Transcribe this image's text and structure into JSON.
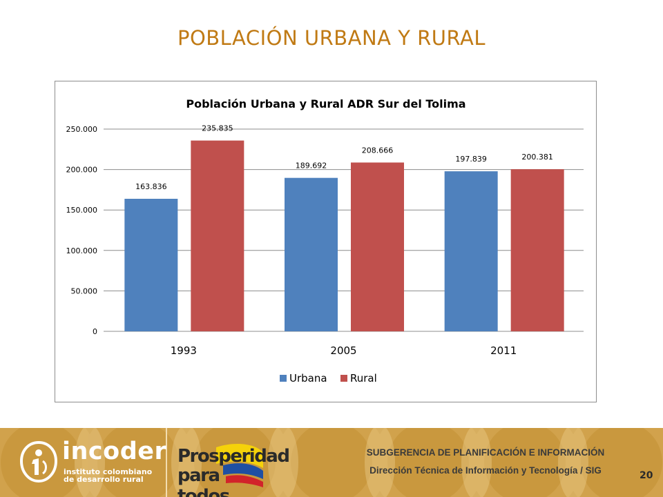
{
  "slide": {
    "title": "POBLACIÓN URBANA Y RURAL",
    "page_number": "20"
  },
  "chart_data": {
    "type": "bar",
    "title": "Población Urbana y Rural ADR Sur del Tolima",
    "categories": [
      "1993",
      "2005",
      "2011"
    ],
    "series": [
      {
        "name": "Urbana",
        "color": "#4f81bd",
        "values": [
          163836,
          189692,
          197839
        ],
        "labels": [
          "163.836",
          "189.692",
          "197.839"
        ]
      },
      {
        "name": "Rural",
        "color": "#c0504d",
        "values": [
          235835,
          208666,
          200381
        ],
        "labels": [
          "235.835",
          "208.666",
          "200.381"
        ]
      }
    ],
    "ylim": [
      0,
      250000
    ],
    "yticks": [
      0,
      50000,
      100000,
      150000,
      200000,
      250000
    ],
    "ytick_labels": [
      "0",
      "50.000",
      "100.000",
      "150.000",
      "200.000",
      "250.000"
    ],
    "grid": true,
    "legend_position": "bottom"
  },
  "footer": {
    "org_name": "incoder",
    "org_sub_line1": "instituto colombiano",
    "org_sub_line2": "de desarrollo rural",
    "campaign_line1": "Prosperidad",
    "campaign_line2": "para todos",
    "subgerencia": "SUBGERENCIA DE PLANIFICACIÓN E INFORMACIÓN",
    "direccion": "Dirección Técnica de Información y Tecnología / SIG"
  },
  "colors": {
    "title": "#c07a14",
    "footer_bg": "#c9983e"
  }
}
